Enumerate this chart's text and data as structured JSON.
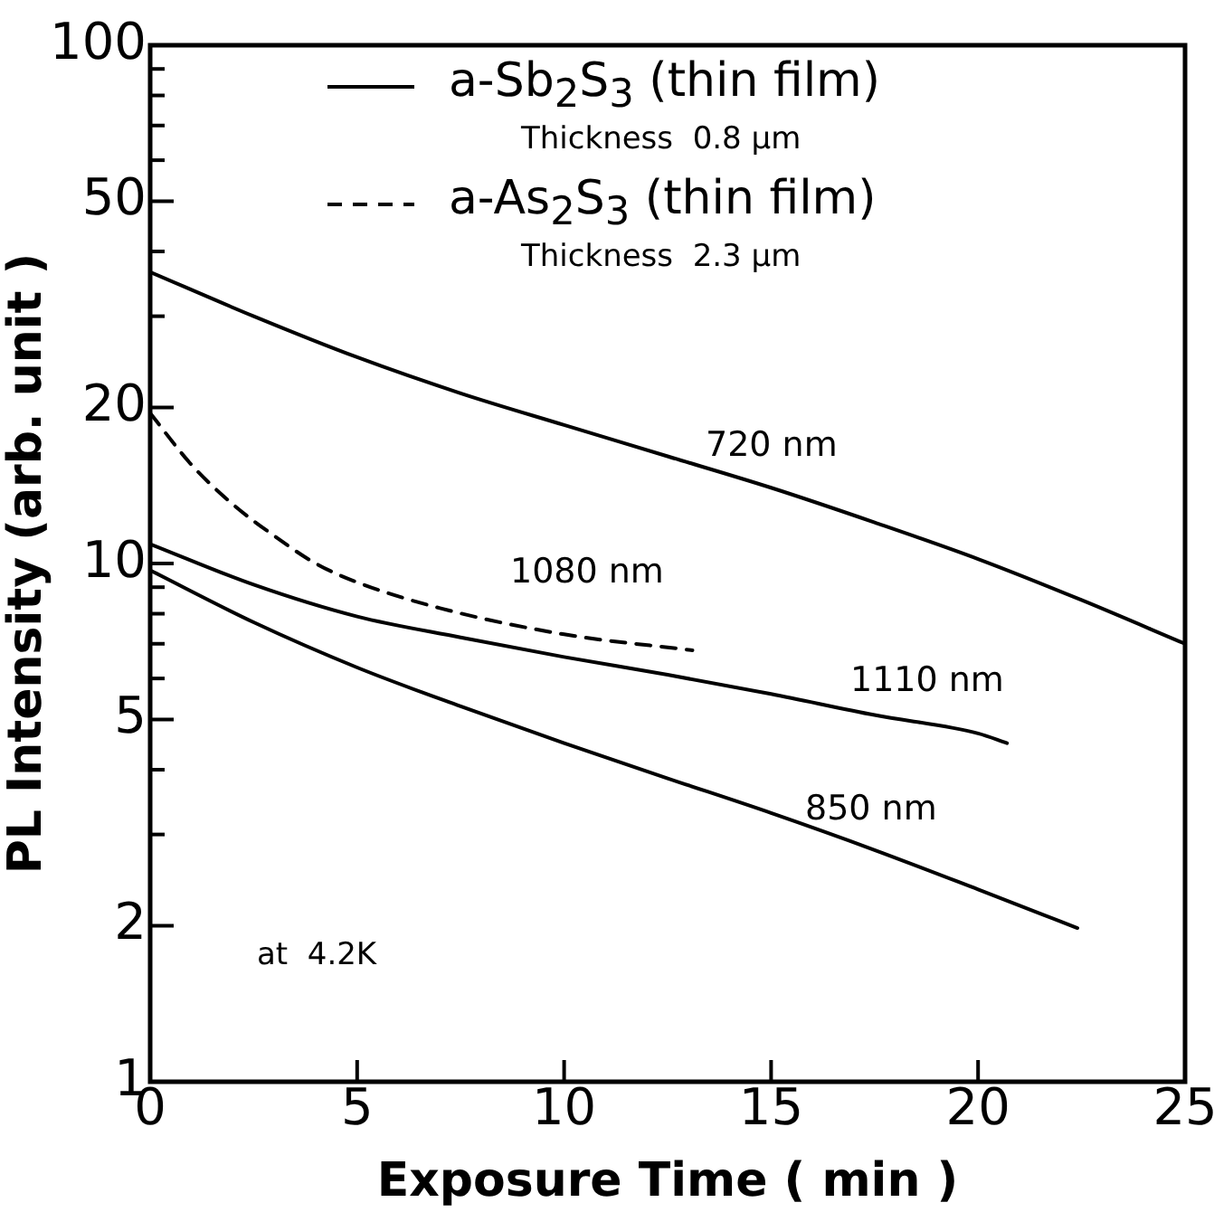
{
  "chart_data": {
    "type": "line",
    "xlabel": "Exposure Time ( min )",
    "ylabel": "PL Intensity (arb. unit )",
    "log": "y",
    "grid": false,
    "legend": "top",
    "marker": "none",
    "line_style": "solid",
    "xlim": [
      0,
      25
    ],
    "xticks": [
      0,
      5,
      10,
      15,
      20,
      25
    ],
    "ylim": [
      1,
      100
    ],
    "yticks": [
      1,
      2,
      {
        "value": 3,
        "label": null
      },
      {
        "value": 4,
        "label": null
      },
      5,
      {
        "value": 6,
        "label": null
      },
      {
        "value": 7,
        "label": null
      },
      {
        "value": 8,
        "label": null
      },
      {
        "value": 9,
        "label": null
      },
      10,
      20,
      {
        "value": 30,
        "label": null
      },
      {
        "value": 40,
        "label": null
      },
      50,
      {
        "value": 60,
        "label": null
      },
      {
        "value": 70,
        "label": null
      },
      {
        "value": 80,
        "label": null
      },
      {
        "value": 90,
        "label": null
      },
      100
    ],
    "series": [
      {
        "name": "a-Sb$_{2}$S$_{3}$ (thin film)",
        "color": "#000000",
        "x": [
          0,
          2.5,
          5,
          7.5,
          10,
          12.5,
          15,
          17.5,
          20,
          22.5,
          25
        ],
        "values": [
          36.5,
          30,
          25,
          21.3,
          18.5,
          16.1,
          14,
          12,
          10.2,
          8.5,
          7.0
        ]
      },
      {
        "name": "a-As$_{2}$S$_{3}$ (thin film)",
        "color": "#000000",
        "line_style": "dashed",
        "x": [
          0,
          1,
          2,
          3,
          4,
          5,
          7,
          10,
          13.1
        ],
        "values": [
          19.5,
          15.5,
          13,
          11.3,
          10,
          9.2,
          8.2,
          7.3,
          6.8
        ]
      },
      {
        "color": "#000000",
        "x": [
          0,
          2.5,
          5,
          7.5,
          10,
          12.5,
          15,
          17.5,
          20,
          20.7
        ],
        "values": [
          10.9,
          9.1,
          7.9,
          7.2,
          6.6,
          6.1,
          5.6,
          5.1,
          4.7,
          4.5
        ]
      },
      {
        "color": "#000000",
        "x": [
          0,
          2.5,
          5,
          7.5,
          10,
          12.5,
          15,
          17.5,
          20,
          22.4
        ],
        "values": [
          9.7,
          7.7,
          6.3,
          5.3,
          4.5,
          3.85,
          3.3,
          2.8,
          2.35,
          1.98
        ]
      }
    ],
    "annotations": [
      "Thickness  0.8 μm",
      "Thickness  2.3 μm",
      "at  4.2K",
      "720 nm",
      "1080 nm",
      "1110 nm",
      "850 nm"
    ]
  }
}
